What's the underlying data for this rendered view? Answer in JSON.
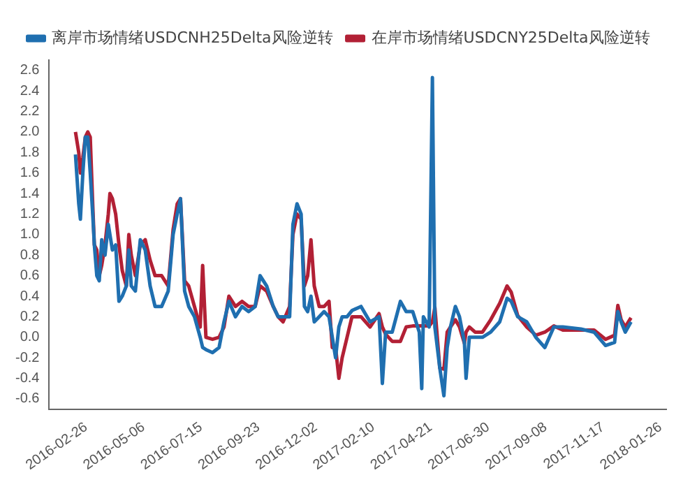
{
  "chart_data": {
    "type": "line",
    "x": [
      "2016-02-13",
      "2016-02-17",
      "2016-02-19",
      "2016-02-22",
      "2016-02-25",
      "2016-02-28",
      "2016-03-02",
      "2016-03-05",
      "2016-03-07",
      "2016-03-10",
      "2016-03-13",
      "2016-03-16",
      "2016-03-20",
      "2016-03-24",
      "2016-03-26",
      "2016-03-29",
      "2016-04-02",
      "2016-04-06",
      "2016-04-10",
      "2016-04-15",
      "2016-04-18",
      "2016-04-21",
      "2016-04-26",
      "2016-05-02",
      "2016-05-08",
      "2016-05-14",
      "2016-05-20",
      "2016-05-28",
      "2016-06-05",
      "2016-06-11",
      "2016-06-16",
      "2016-06-20",
      "2016-06-25",
      "2016-06-30",
      "2016-07-07",
      "2016-07-14",
      "2016-07-17",
      "2016-07-21",
      "2016-07-29",
      "2016-08-06",
      "2016-08-12",
      "2016-08-18",
      "2016-08-26",
      "2016-09-03",
      "2016-09-11",
      "2016-09-19",
      "2016-09-25",
      "2016-10-03",
      "2016-10-11",
      "2016-10-17",
      "2016-10-23",
      "2016-10-31",
      "2016-11-04",
      "2016-11-09",
      "2016-11-14",
      "2016-11-18",
      "2016-11-22",
      "2016-11-26",
      "2016-11-30",
      "2016-12-06",
      "2016-12-12",
      "2016-12-18",
      "2016-12-22",
      "2016-12-26",
      "2016-12-30",
      "2017-01-03",
      "2017-01-09",
      "2017-01-15",
      "2017-01-26",
      "2017-02-06",
      "2017-02-17",
      "2017-02-21",
      "2017-02-25",
      "2017-03-05",
      "2017-03-15",
      "2017-03-22",
      "2017-03-30",
      "2017-04-07",
      "2017-04-10",
      "2017-04-12",
      "2017-04-19",
      "2017-04-23",
      "2017-04-26",
      "2017-05-02",
      "2017-05-07",
      "2017-05-11",
      "2017-05-15",
      "2017-05-21",
      "2017-05-26",
      "2017-06-01",
      "2017-06-03",
      "2017-06-07",
      "2017-06-14",
      "2017-06-23",
      "2017-07-03",
      "2017-07-14",
      "2017-07-23",
      "2017-07-28",
      "2017-08-05",
      "2017-08-16",
      "2017-08-27",
      "2017-09-07",
      "2017-09-18",
      "2017-09-29",
      "2017-10-21",
      "2017-11-06",
      "2017-11-20",
      "2017-12-01",
      "2017-12-05",
      "2017-12-09",
      "2017-12-14",
      "2017-12-21"
    ],
    "series": [
      {
        "name": "离岸市场情绪USDCNH25Delta风险逆转",
        "color": "#1f6fb0",
        "values": [
          1.78,
          1.3,
          1.15,
          1.6,
          1.95,
          1.95,
          1.6,
          1.2,
          0.9,
          0.6,
          0.55,
          0.95,
          0.8,
          1.1,
          1.0,
          0.85,
          0.9,
          0.35,
          0.4,
          0.5,
          0.85,
          0.5,
          0.45,
          0.95,
          0.85,
          0.5,
          0.3,
          0.3,
          0.45,
          1.0,
          1.2,
          1.35,
          0.45,
          0.3,
          0.2,
          0.0,
          -0.1,
          -0.12,
          -0.15,
          -0.1,
          0.15,
          0.35,
          0.2,
          0.3,
          0.25,
          0.3,
          0.6,
          0.5,
          0.3,
          0.2,
          0.2,
          0.2,
          1.1,
          1.3,
          1.2,
          0.3,
          0.25,
          0.4,
          0.15,
          0.2,
          0.25,
          0.2,
          0.0,
          -0.2,
          0.1,
          0.2,
          0.2,
          0.26,
          0.3,
          0.15,
          0.2,
          -0.45,
          0.05,
          0.05,
          0.35,
          0.25,
          0.25,
          0.05,
          -0.5,
          0.2,
          0.1,
          2.53,
          0.1,
          -0.3,
          -0.57,
          -0.1,
          0.1,
          0.3,
          0.2,
          -0.05,
          -0.4,
          0.0,
          0.0,
          0.0,
          0.05,
          0.15,
          0.38,
          0.35,
          0.2,
          0.15,
          0.0,
          -0.1,
          0.1,
          0.1,
          0.08,
          0.05,
          -0.08,
          -0.05,
          0.25,
          0.15,
          0.05,
          0.15
        ]
      },
      {
        "name": "在岸市场情绪USDCNY25Delta风险逆转",
        "color": "#b22035",
        "values": [
          2.0,
          1.8,
          1.6,
          1.75,
          1.95,
          2.0,
          1.95,
          1.3,
          0.9,
          0.85,
          0.6,
          0.7,
          0.9,
          1.2,
          1.4,
          1.35,
          1.2,
          0.9,
          0.65,
          0.5,
          1.0,
          0.8,
          0.6,
          0.9,
          0.95,
          0.75,
          0.6,
          0.6,
          0.5,
          1.05,
          1.3,
          1.35,
          0.55,
          0.5,
          0.3,
          0.1,
          0.7,
          0.0,
          -0.02,
          0.0,
          0.1,
          0.4,
          0.3,
          0.35,
          0.3,
          0.3,
          0.5,
          0.45,
          0.3,
          0.2,
          0.15,
          0.3,
          1.0,
          1.2,
          1.15,
          0.5,
          0.6,
          0.95,
          0.5,
          0.3,
          0.3,
          0.35,
          -0.1,
          -0.1,
          -0.4,
          -0.2,
          0.0,
          0.2,
          0.2,
          0.1,
          0.23,
          0.1,
          0.03,
          -0.04,
          -0.04,
          0.1,
          0.11,
          0.11,
          0.11,
          0.11,
          0.11,
          0.15,
          0.29,
          -0.3,
          -0.31,
          0.05,
          0.1,
          0.17,
          0.1,
          -0.06,
          0.05,
          0.1,
          0.05,
          0.05,
          0.17,
          0.33,
          0.5,
          0.44,
          0.21,
          0.1,
          0.02,
          0.05,
          0.11,
          0.07,
          0.07,
          0.07,
          -0.02,
          0.02,
          0.31,
          0.17,
          0.1,
          0.19
        ]
      }
    ],
    "xlim": [
      "2016-01-12",
      "2018-02-02"
    ],
    "xticks": [
      "2016-02-26",
      "2016-05-06",
      "2016-07-15",
      "2016-09-23",
      "2016-12-02",
      "2017-02-10",
      "2017-04-21",
      "2017-06-30",
      "2017-09-08",
      "2017-11-17",
      "2018-01-26"
    ],
    "ylim": [
      -0.7,
      2.7
    ],
    "yticks": [
      -0.6,
      -0.4,
      -0.2,
      {
        "value": 0,
        "label": "0.0"
      },
      0.2,
      0.4,
      0.6,
      0.8,
      {
        "value": 1,
        "label": "1.0"
      },
      1.2,
      1.4,
      1.6,
      1.8,
      {
        "value": 2,
        "label": "2.0"
      },
      2.2,
      2.4,
      2.6
    ],
    "grid": false,
    "legend": "top",
    "marker": "none",
    "line_style": "solid"
  }
}
